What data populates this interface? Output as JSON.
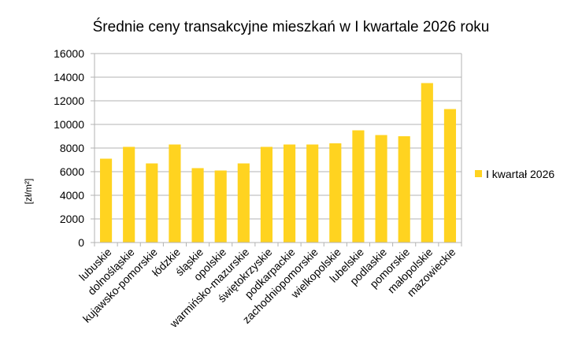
{
  "chart_data": {
    "type": "bar",
    "title": "Średnie ceny transakcyjne mieszkań w I kwartale 2026 roku",
    "xlabel": "",
    "ylabel": "[zł/m²]",
    "ylim": [
      0,
      16000
    ],
    "yticks": [
      0,
      2000,
      4000,
      6000,
      8000,
      10000,
      12000,
      14000,
      16000
    ],
    "categories": [
      "lubuskie",
      "dolnośląskie",
      "kujawsko-pomorskie",
      "łódzkie",
      "śląskie",
      "opolskie",
      "warmińsko-mazurskie",
      "świętokrzyskie",
      "podkarpackie",
      "zachodniopomorskie",
      "wielkopolskie",
      "lubelskie",
      "podlaskie",
      "pomorskie",
      "małopolskie",
      "mazowieckie"
    ],
    "series": [
      {
        "name": "I kwartał 2026",
        "values": [
          7100,
          8100,
          6700,
          8300,
          6300,
          6100,
          6700,
          8100,
          8300,
          8300,
          8400,
          9500,
          9100,
          9000,
          13500,
          11300
        ]
      }
    ],
    "grid": true,
    "legend_position": "right",
    "colors": {
      "bar": "#FFD320",
      "axis": "#b3b3b3",
      "grid": "#b3b3b3"
    }
  }
}
